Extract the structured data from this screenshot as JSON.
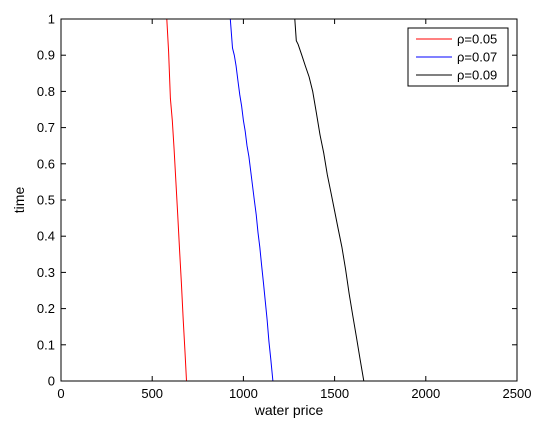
{
  "chart_data": {
    "type": "line",
    "title": "",
    "xlabel": "water price",
    "ylabel": "time",
    "xlim": [
      0,
      2500
    ],
    "ylim": [
      0,
      1
    ],
    "xticks": [
      "0",
      "500",
      "1000",
      "1500",
      "2000",
      "2500"
    ],
    "yticks": [
      "0",
      "0.1",
      "0.2",
      "0.3",
      "0.4",
      "0.5",
      "0.6",
      "0.7",
      "0.8",
      "0.9",
      "1"
    ],
    "grid": false,
    "legend_position": "top-right",
    "series": [
      {
        "name": "ρ=0.05",
        "color": "#ff0000",
        "x": [
          580,
          590,
          600,
          610,
          620,
          630,
          640,
          650,
          660,
          670,
          680,
          688
        ],
        "y": [
          1.0,
          0.91,
          0.78,
          0.72,
          0.64,
          0.55,
          0.46,
          0.36,
          0.27,
          0.17,
          0.08,
          0.0
        ]
      },
      {
        "name": "ρ=0.07",
        "color": "#0000ff",
        "x": [
          928,
          940,
          950,
          960,
          970,
          980,
          990,
          1000,
          1010,
          1020,
          1030,
          1040,
          1050,
          1060,
          1070,
          1080,
          1090,
          1100,
          1110,
          1120,
          1130,
          1140,
          1150,
          1162
        ],
        "y": [
          1.0,
          0.92,
          0.9,
          0.87,
          0.83,
          0.79,
          0.76,
          0.72,
          0.69,
          0.65,
          0.62,
          0.58,
          0.54,
          0.5,
          0.46,
          0.41,
          0.37,
          0.32,
          0.27,
          0.22,
          0.17,
          0.11,
          0.06,
          0.0
        ]
      },
      {
        "name": "ρ=0.09",
        "color": "#000000",
        "x": [
          1282,
          1290,
          1300,
          1320,
          1340,
          1360,
          1380,
          1400,
          1420,
          1440,
          1460,
          1480,
          1500,
          1520,
          1540,
          1560,
          1580,
          1600,
          1620,
          1640,
          1660
        ],
        "y": [
          1.0,
          0.94,
          0.93,
          0.9,
          0.87,
          0.84,
          0.8,
          0.74,
          0.68,
          0.63,
          0.57,
          0.52,
          0.47,
          0.42,
          0.37,
          0.31,
          0.24,
          0.18,
          0.12,
          0.06,
          0.0
        ]
      }
    ]
  }
}
